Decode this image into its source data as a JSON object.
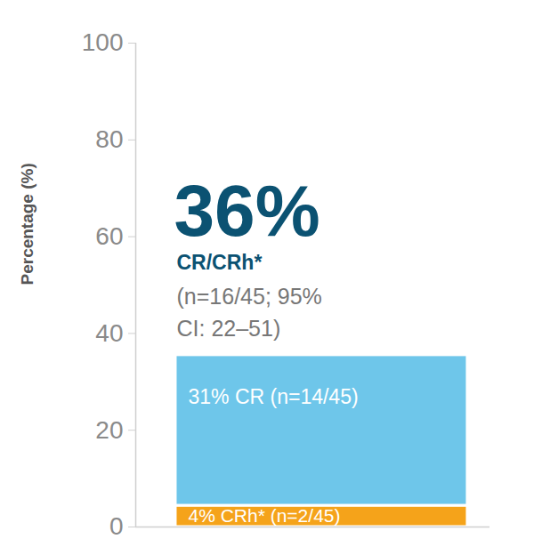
{
  "chart_data": {
    "type": "bar",
    "stacked": true,
    "ylabel": "Percentage (%)",
    "ylim": [
      0,
      100
    ],
    "yticks": [
      0,
      20,
      40,
      60,
      80,
      100
    ],
    "tick_labels": "y",
    "data_labels": true,
    "series": [
      {
        "name": "CRh*",
        "color": "#f5a31a",
        "values": [
          4.4
        ],
        "value_labels": [
          "4% CRh* (n=2/45)"
        ]
      },
      {
        "name": "CR",
        "color": "#6ec6ea",
        "values": [
          31.1
        ],
        "value_labels": [
          "31% CR (n=14/45)"
        ]
      }
    ],
    "annotation": {
      "headline": "36%",
      "subheadline": "CR/CRh*",
      "note": "(n=16/45; 95%\nCI: 22–51)"
    }
  }
}
